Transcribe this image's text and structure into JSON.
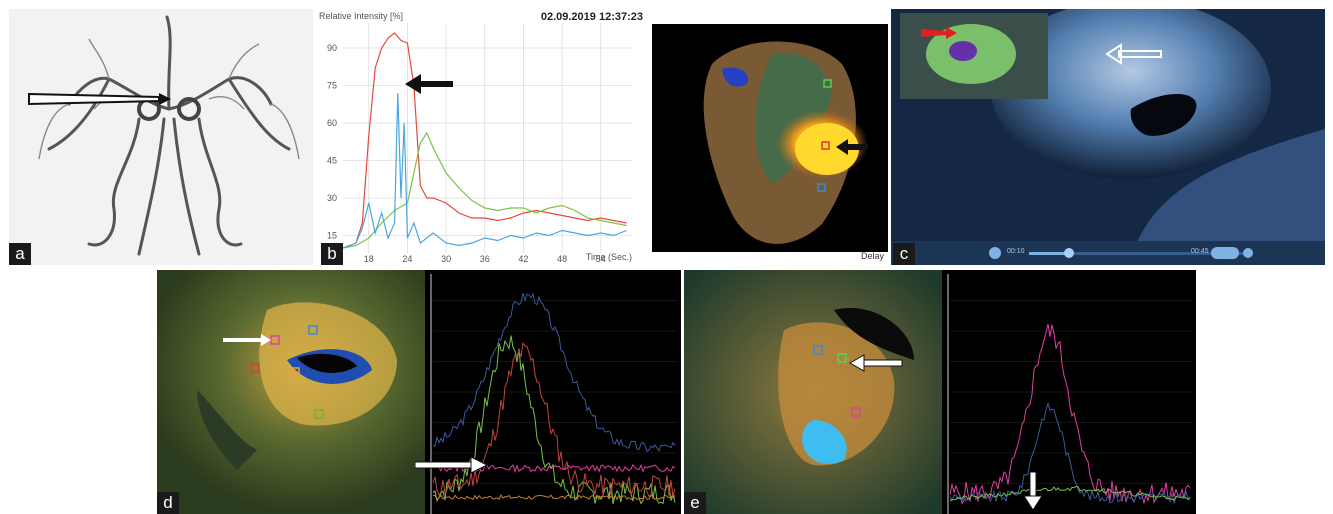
{
  "panels": {
    "a": {
      "label": "a"
    },
    "b": {
      "label": "b",
      "ylabel": "Relative Intensity [%]",
      "timestamp": "02.09.2019  12:37:23",
      "xlabel": "Time (Sec.)",
      "map_caption": "Delay"
    },
    "c": {
      "label": "c",
      "time_start": "00:10",
      "time_end": "00:45"
    },
    "d": {
      "label": "d"
    },
    "e": {
      "label": "e"
    }
  },
  "chart_data": [
    {
      "type": "line",
      "panel": "b",
      "ylabel": "Relative Intensity [%]",
      "xlabel": "Time (Sec.)",
      "xlim": [
        14,
        59
      ],
      "ylim": [
        8,
        100
      ],
      "xticks": [
        18,
        24,
        30,
        36,
        42,
        48,
        54
      ],
      "yticks": [
        15,
        30,
        45,
        60,
        75,
        90
      ],
      "grid": true,
      "series": [
        {
          "color": "#e8483b",
          "x": [
            14,
            16,
            17,
            18,
            19,
            20,
            21,
            22,
            23,
            24,
            25,
            26,
            27,
            28,
            30,
            32,
            34,
            36,
            38,
            40,
            42,
            44,
            46,
            48,
            50,
            52,
            54,
            56,
            58
          ],
          "y": [
            10,
            12,
            20,
            55,
            82,
            90,
            94,
            96,
            93,
            92,
            75,
            35,
            30,
            30,
            28,
            24,
            22,
            22,
            21,
            22,
            24,
            25,
            24,
            23,
            22,
            21,
            22,
            21,
            20
          ]
        },
        {
          "color": "#7cc04b",
          "x": [
            14,
            16,
            18,
            20,
            22,
            24,
            25,
            26,
            27,
            28,
            30,
            32,
            34,
            36,
            38,
            40,
            42,
            44,
            46,
            48,
            50,
            52,
            54,
            56,
            58
          ],
          "y": [
            10,
            11,
            14,
            20,
            25,
            28,
            40,
            52,
            56,
            50,
            40,
            34,
            29,
            26,
            25,
            26,
            26,
            24,
            26,
            27,
            25,
            22,
            21,
            20,
            19
          ]
        },
        {
          "color": "#4aa6e0",
          "x": [
            14,
            16,
            17,
            18,
            19,
            20,
            21,
            22,
            22.5,
            23,
            23.5,
            24,
            25,
            26,
            28,
            30,
            32,
            34,
            36,
            38,
            40,
            42,
            44,
            46,
            48,
            50,
            52,
            54,
            56,
            58
          ],
          "y": [
            10,
            12,
            18,
            28,
            16,
            24,
            14,
            20,
            72,
            30,
            60,
            14,
            20,
            12,
            16,
            12,
            11,
            12,
            14,
            13,
            15,
            14,
            16,
            15,
            17,
            16,
            15,
            16,
            15,
            17
          ]
        }
      ]
    },
    {
      "type": "line",
      "panel": "d",
      "series": [
        {
          "color": "#3a5a9a"
        },
        {
          "color": "#7cc04b"
        },
        {
          "color": "#c0453a"
        },
        {
          "color": "#e040a0"
        },
        {
          "color": "#c08030"
        }
      ]
    },
    {
      "type": "line",
      "panel": "e",
      "series": [
        {
          "color": "#e040a0"
        },
        {
          "color": "#3a5a9a"
        },
        {
          "color": "#7cc04b"
        }
      ]
    }
  ]
}
